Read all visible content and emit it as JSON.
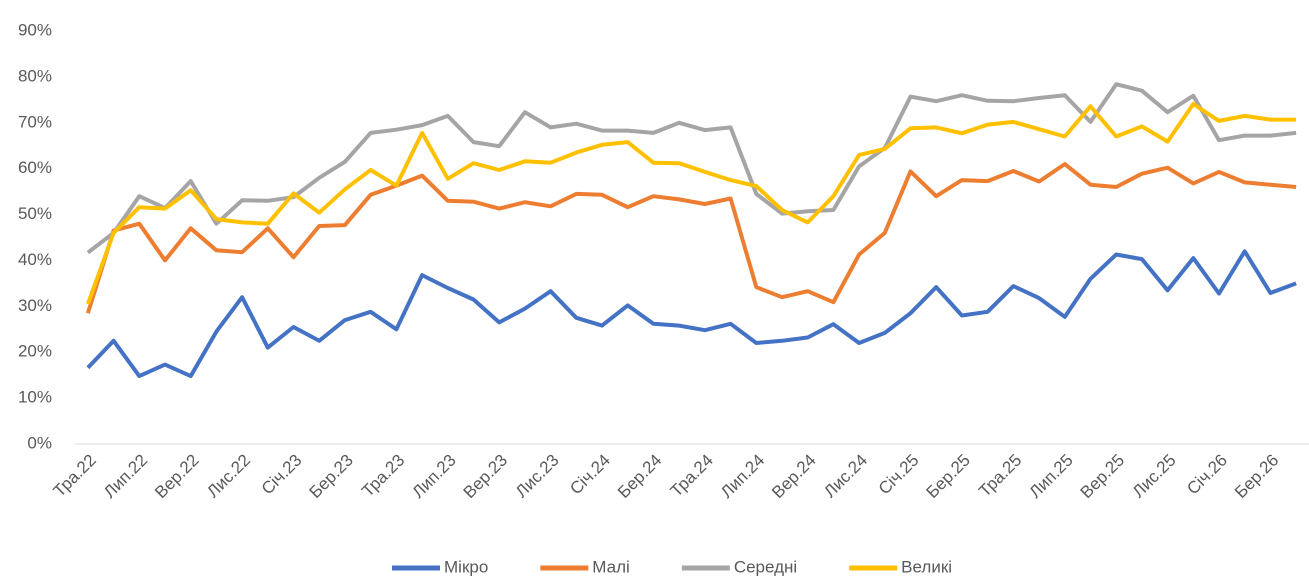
{
  "chart_data": {
    "type": "line",
    "categories": [
      "Тра.22",
      null,
      "Лип.22",
      null,
      "Вер.22",
      null,
      "Лис.22",
      null,
      "Січ.23",
      null,
      "Бер.23",
      null,
      "Тра.23",
      null,
      "Лип.23",
      null,
      "Вер.23",
      null,
      "Лис.23",
      null,
      "Січ.24",
      null,
      "Бер.24",
      null,
      "Тра.24",
      null,
      "Лип.24",
      null,
      "Вер.24",
      null,
      "Лис.24",
      null,
      "Січ.25",
      null,
      "Бер.25",
      null,
      "Тра.25",
      null,
      "Лип.25",
      null,
      "Вер.25",
      null,
      "Лис.25",
      null,
      "Січ.26",
      null,
      "Бер.26",
      null
    ],
    "series": [
      {
        "name": "Мікро",
        "color": "#4472c4",
        "values": [
          16.6,
          22.5,
          14.8,
          17.3,
          14.8,
          24.5,
          32,
          21,
          25.5,
          22.5,
          27,
          28.8,
          25,
          36.8,
          34,
          31.5,
          26.5,
          29.5,
          33.3,
          27.5,
          25.8,
          30.2,
          26.2,
          25.8,
          24.8,
          26.2,
          22,
          22.5,
          23.2,
          26.1,
          22,
          24.2,
          28.5,
          34.2,
          28,
          28.8,
          34.4,
          31.8,
          27.7,
          36,
          41.3,
          40.3,
          33.5,
          40.5,
          32.8,
          42,
          32.9,
          35
        ]
      },
      {
        "name": "Малі",
        "color": "#ed7d31",
        "values": [
          28.5,
          46.5,
          48,
          40,
          47,
          42.2,
          41.8,
          47,
          40.7,
          47.5,
          47.7,
          54.3,
          56.3,
          58.5,
          53,
          52.8,
          51.3,
          52.7,
          51.8,
          54.5,
          54.3,
          51.6,
          54,
          53.3,
          52.3,
          53.5,
          34.2,
          32,
          33.3,
          30.9,
          41.3,
          46,
          59.4,
          54,
          57.5,
          57.3,
          59.5,
          57.2,
          61,
          56.5,
          56,
          58.9,
          60.2,
          56.8,
          59.3,
          57,
          56.5,
          56
        ]
      },
      {
        "name": "Середні",
        "color": "#a5a5a5",
        "values": [
          41.7,
          46,
          54,
          51.4,
          57.3,
          48,
          53.1,
          53,
          53.8,
          58,
          61.5,
          67.8,
          68.5,
          69.5,
          71.5,
          65.8,
          64.9,
          72.3,
          69,
          69.8,
          68.3,
          68.3,
          67.8,
          70,
          68.4,
          69,
          54.5,
          50.2,
          50.7,
          51,
          60.5,
          64.5,
          75.7,
          74.7,
          76,
          74.8,
          74.7,
          75.4,
          76,
          70.2,
          78.4,
          77,
          72.3,
          75.9,
          66.2,
          67.2,
          67.2,
          67.8
        ]
      },
      {
        "name": "Великі",
        "color": "#ffc000",
        "values": [
          30.5,
          46,
          51.6,
          51.3,
          55.3,
          49,
          48.3,
          48,
          54.6,
          50.4,
          55.5,
          59.7,
          56.3,
          67.8,
          57.8,
          61.2,
          59.7,
          61.6,
          61.3,
          63.5,
          65.2,
          65.8,
          61.3,
          61.2,
          59.3,
          57.5,
          56.2,
          51,
          48.3,
          54,
          63,
          64.3,
          68.8,
          69,
          67.7,
          69.6,
          70.2,
          68.6,
          67,
          73.6,
          67,
          69.2,
          65.9,
          74.1,
          70.4,
          71.5,
          70.7,
          70.7
        ]
      }
    ],
    "ylim": [
      0,
      90
    ],
    "yticks": [
      {
        "value": 0,
        "label": "0%"
      },
      {
        "value": 10,
        "label": "10%"
      },
      {
        "value": 20,
        "label": "20%"
      },
      {
        "value": 30,
        "label": "30%"
      },
      {
        "value": 40,
        "label": "40%"
      },
      {
        "value": 50,
        "label": "50%"
      },
      {
        "value": 60,
        "label": "60%"
      },
      {
        "value": 70,
        "label": "70%"
      },
      {
        "value": 80,
        "label": "80%"
      },
      {
        "value": 90,
        "label": "90%"
      }
    ],
    "grid": false,
    "legend": "bottom"
  }
}
